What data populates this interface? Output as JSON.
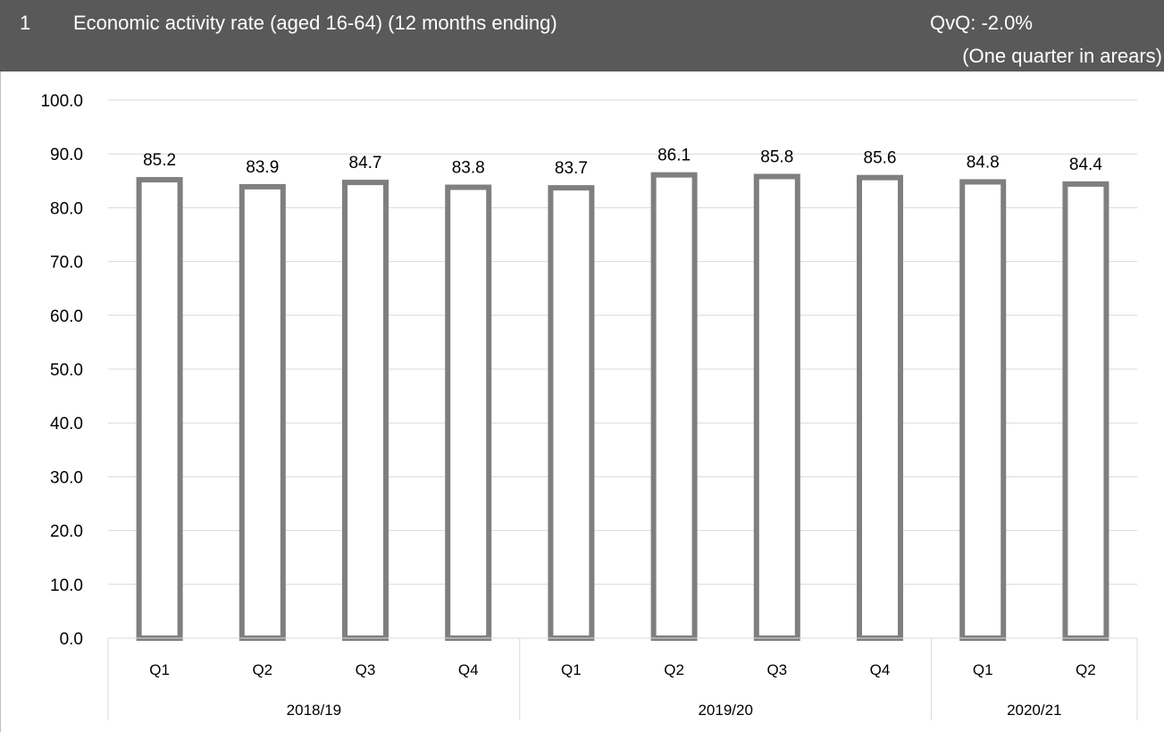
{
  "header": {
    "number": "1",
    "title": "Economic activity rate (aged 16-64) (12 months ending)",
    "change": "QvQ: -2.0%",
    "note": "(One quarter in arears)"
  },
  "colors": {
    "header_bg": "#595959",
    "bar_stroke": "#7f7f7f",
    "bar_fill": "#ffffff",
    "gridline": "#d9d9d9"
  },
  "chart_data": {
    "type": "bar",
    "title": "Economic activity rate (aged 16-64) (12 months ending)",
    "categories": [
      "Q1",
      "Q2",
      "Q3",
      "Q4",
      "Q1",
      "Q2",
      "Q3",
      "Q4",
      "Q1",
      "Q2"
    ],
    "groups": [
      {
        "label": "2018/19",
        "count": 4
      },
      {
        "label": "2019/20",
        "count": 4
      },
      {
        "label": "2020/21",
        "count": 2
      }
    ],
    "values": [
      85.2,
      83.9,
      84.7,
      83.8,
      83.7,
      86.1,
      85.8,
      85.6,
      84.8,
      84.4
    ],
    "value_labels": [
      "85.2",
      "83.9",
      "84.7",
      "83.8",
      "83.7",
      "86.1",
      "85.8",
      "85.6",
      "84.8",
      "84.4"
    ],
    "yticks": [
      "0.0",
      "10.0",
      "20.0",
      "30.0",
      "40.0",
      "50.0",
      "60.0",
      "70.0",
      "80.0",
      "90.0",
      "100.0"
    ],
    "ylim": [
      0,
      100
    ],
    "grid": true,
    "legend": "none"
  }
}
